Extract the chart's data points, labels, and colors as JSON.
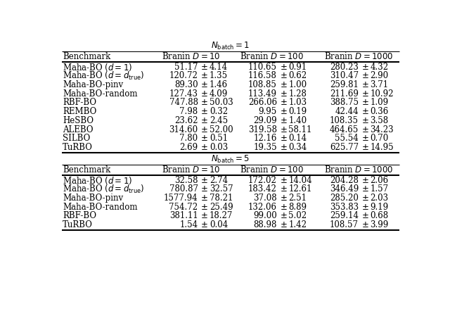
{
  "section1_rows": [
    [
      "Maha-BO (d = 1)",
      "51.17",
      "4.14",
      "110.65",
      "0.91",
      "280.23",
      "4.32"
    ],
    [
      "Maha-BO (d = d_true)",
      "120.72",
      "1.35",
      "116.58",
      "0.62",
      "310.47",
      "2.90"
    ],
    [
      "Maha-BO-pinv",
      "89.30",
      "1.46",
      "108.85",
      "1.00",
      "259.81",
      "3.71"
    ],
    [
      "Maha-BO-random",
      "127.43",
      "4.09",
      "113.49",
      "1.28",
      "211.69",
      "10.92"
    ],
    [
      "RBF-BO",
      "747.88",
      "50.03",
      "266.06",
      "1.03",
      "388.75",
      "1.09"
    ],
    [
      "REMBO",
      "7.98",
      "0.32",
      "9.95",
      "0.19",
      "42.44",
      "0.36"
    ],
    [
      "HeSBO",
      "23.62",
      "2.45",
      "29.09",
      "1.40",
      "108.35",
      "3.58"
    ],
    [
      "ALEBO",
      "314.60",
      "52.00",
      "319.58",
      "58.11",
      "464.65",
      "34.23"
    ],
    [
      "SILBO",
      "7.80",
      "0.51",
      "12.16",
      "0.14",
      "55.54",
      "0.70"
    ],
    [
      "TuRBO",
      "2.69",
      "0.03",
      "19.35",
      "0.34",
      "625.77",
      "14.95"
    ]
  ],
  "section2_rows": [
    [
      "Maha-BO (d = 1)",
      "32.58",
      "2.74",
      "172.02",
      "14.04",
      "204.28",
      "2.06"
    ],
    [
      "Maha-BO (d = d_true)",
      "780.87",
      "32.57",
      "183.42",
      "12.61",
      "346.49",
      "1.57"
    ],
    [
      "Maha-BO-pinv",
      "1577.94",
      "78.21",
      "37.08",
      "2.51",
      "285.20",
      "2.03"
    ],
    [
      "Maha-BO-random",
      "754.72",
      "25.49",
      "132.06",
      "8.89",
      "353.83",
      "9.19"
    ],
    [
      "RBF-BO",
      "381.11",
      "18.27",
      "99.00",
      "5.02",
      "259.14",
      "0.68"
    ],
    [
      "TuRBO",
      "1.54",
      "0.04",
      "88.98",
      "1.42",
      "108.57",
      "3.99"
    ]
  ],
  "bg_color": "#ffffff"
}
